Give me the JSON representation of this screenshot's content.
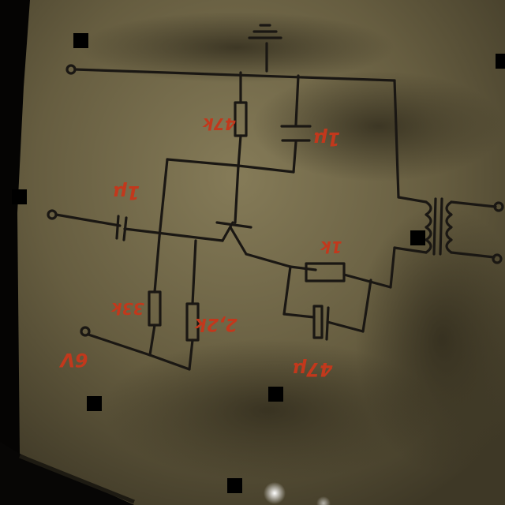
{
  "labels": {
    "r1": "47k",
    "c1": "1µ",
    "c2": "1µ",
    "r2": "33k",
    "r3": "2,2k",
    "r4": "1k",
    "c3": "47µ",
    "supply": "6V"
  },
  "colors": {
    "paper": "#6e6545",
    "paper_shadow": "#3a3423",
    "ink": "#1a1713",
    "red_ink": "#c2381c",
    "backdrop": "#050403"
  }
}
